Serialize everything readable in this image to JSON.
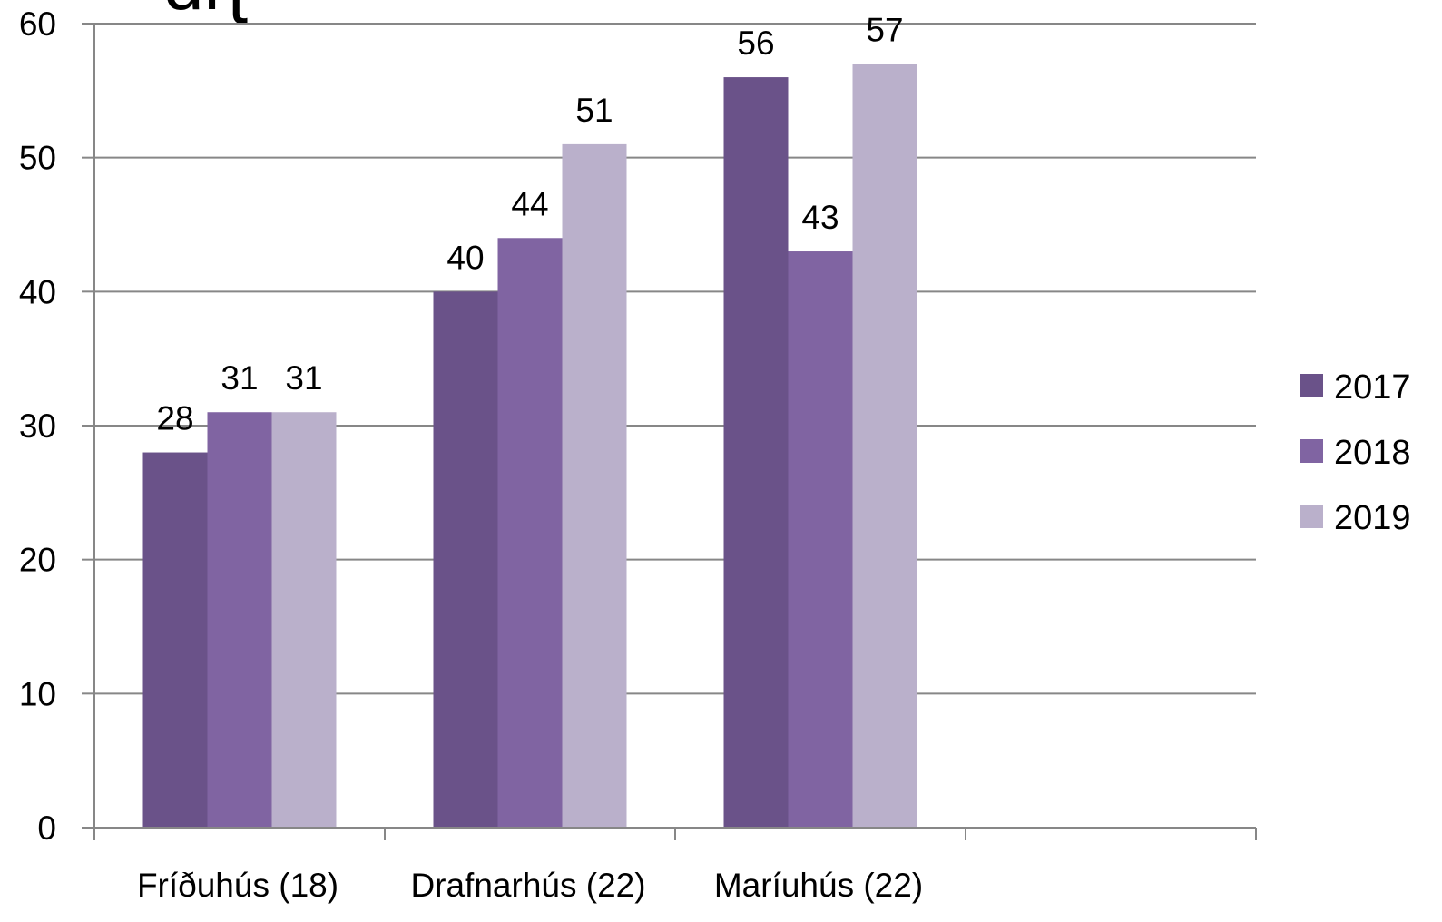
{
  "chart_data": {
    "type": "bar",
    "title_fragment": "ɑɳ",
    "categories": [
      "Fríðuhús (18)",
      "Drafnarhús (22)",
      "Maríuhús (22)",
      ""
    ],
    "series": [
      {
        "name": "2017",
        "color": "#6a5289",
        "values": [
          28,
          40,
          56,
          null
        ]
      },
      {
        "name": "2018",
        "color": "#8064a2",
        "values": [
          31,
          44,
          43,
          null
        ]
      },
      {
        "name": "2019",
        "color": "#bab0cb",
        "values": [
          31,
          51,
          57,
          null
        ]
      }
    ],
    "ylim": [
      0,
      60
    ],
    "yticks": [
      0,
      10,
      20,
      30,
      40,
      50,
      60
    ],
    "xlabel": "",
    "ylabel": "",
    "grid": true,
    "grid_color": "#878787",
    "legend_position": "right"
  }
}
